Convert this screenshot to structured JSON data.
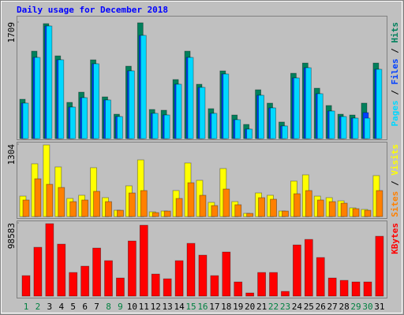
{
  "chart_data": [
    {
      "type": "bar",
      "title": "Daily usage for December 2018",
      "ylim": [
        0,
        1709
      ],
      "yticks": [
        1709
      ],
      "legend_separator": " / ",
      "series": [
        {
          "name": "Hits",
          "color": "#00805c",
          "values": [
            577,
            1282,
            1686,
            1213,
            531,
            681,
            1155,
            612,
            358,
            1062,
            1698,
            427,
            416,
            866,
            1282,
            797,
            439,
            993,
            346,
            208,
            716,
            520,
            243,
            958,
            1108,
            739,
            485,
            358,
            346,
            520,
            1108
          ]
        },
        {
          "name": "Files",
          "color": "#0040ff",
          "values": [
            520,
            1190,
            1651,
            1155,
            462,
            600,
            1097,
            566,
            323,
            993,
            1513,
            370,
            346,
            797,
            1190,
            751,
            370,
            947,
            277,
            139,
            635,
            450,
            185,
            889,
            1039,
            658,
            404,
            323,
            300,
            381,
            1016
          ]
        },
        {
          "name": "Pages",
          "color": "#00d8ff",
          "values": [
            520,
            1190,
            1651,
            1155,
            462,
            600,
            1097,
            566,
            323,
            993,
            1513,
            370,
            346,
            797,
            1190,
            751,
            370,
            947,
            277,
            139,
            635,
            450,
            185,
            889,
            1039,
            658,
            404,
            323,
            300,
            300,
            1016
          ]
        }
      ]
    },
    {
      "type": "bar",
      "ylim": [
        0,
        1304
      ],
      "yticks": [
        1304
      ],
      "legend_separator": " / ",
      "series": [
        {
          "name": "Visits",
          "color": "#ffff00",
          "values": [
            368,
            950,
            1289,
            893,
            326,
            383,
            879,
            340,
            113,
            553,
            1020,
            85,
            99,
            468,
            964,
            652,
            255,
            864,
            269,
            57,
            425,
            383,
            99,
            638,
            751,
            368,
            340,
            283,
            156,
            128,
            737
          ]
        },
        {
          "name": "Sites",
          "color": "#ff8000",
          "values": [
            298,
            680,
            581,
            524,
            269,
            298,
            454,
            269,
            113,
            425,
            468,
            71,
            99,
            326,
            609,
            383,
            198,
            496,
            213,
            57,
            340,
            312,
            99,
            411,
            468,
            298,
            269,
            241,
            142,
            113,
            468
          ]
        }
      ]
    },
    {
      "type": "bar",
      "ylim": [
        0,
        98583
      ],
      "yticks": [
        98583
      ],
      "categories": [
        "1",
        "2",
        "3",
        "4",
        "5",
        "6",
        "7",
        "8",
        "9",
        "10",
        "11",
        "12",
        "13",
        "14",
        "15",
        "16",
        "17",
        "18",
        "19",
        "20",
        "21",
        "22",
        "23",
        "24",
        "25",
        "26",
        "27",
        "28",
        "29",
        "30",
        "31"
      ],
      "category_colors": [
        "#008040",
        "#008040",
        "#000000",
        "#000000",
        "#000000",
        "#000000",
        "#000000",
        "#008040",
        "#008040",
        "#000000",
        "#000000",
        "#000000",
        "#000000",
        "#000000",
        "#008040",
        "#008040",
        "#000000",
        "#000000",
        "#000000",
        "#000000",
        "#000000",
        "#008040",
        "#008040",
        "#000000",
        "#000000",
        "#000000",
        "#000000",
        "#000000",
        "#008040",
        "#008040",
        "#000000"
      ],
      "series": [
        {
          "name": "KBytes",
          "color": "#ff0000",
          "values": [
            27560,
            65720,
            97520,
            69960,
            31800,
            40280,
            64660,
            47700,
            24380,
            74200,
            95400,
            29680,
            23320,
            47700,
            71020,
            55120,
            27560,
            59360,
            19080,
            4240,
            31800,
            31800,
            6360,
            68900,
            76320,
            51940,
            24380,
            21200,
            19080,
            19080,
            80560
          ]
        }
      ]
    }
  ]
}
